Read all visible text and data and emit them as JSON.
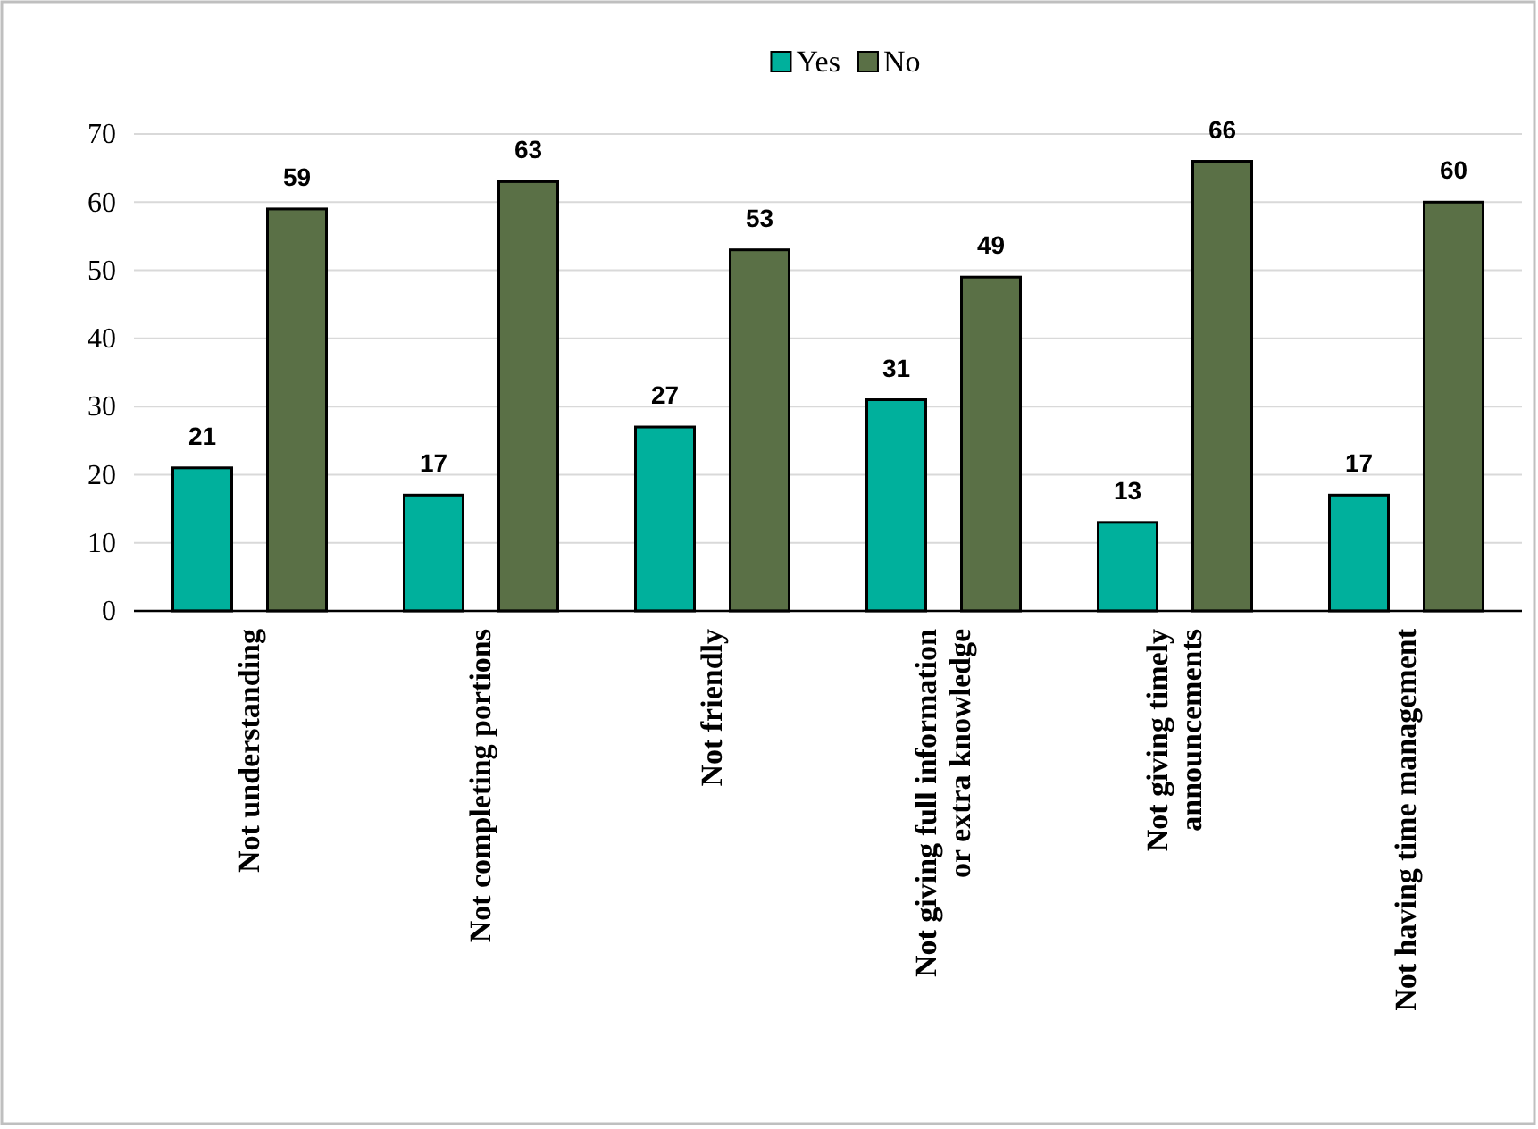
{
  "chart_data": {
    "type": "bar",
    "categories": [
      "Not understanding",
      "Not completing portions",
      "Not friendly",
      "Not giving full information or extra knowledge",
      "Not giving timely announcements",
      "Not having time management"
    ],
    "series": [
      {
        "name": "Yes",
        "color": "#00b09c",
        "values": [
          21,
          17,
          27,
          31,
          13,
          17
        ]
      },
      {
        "name": "No",
        "color": "#5a7046",
        "values": [
          59,
          63,
          53,
          49,
          66,
          60
        ]
      }
    ],
    "ylim": [
      0,
      70
    ],
    "yticks": [
      0,
      10,
      20,
      30,
      40,
      50,
      60,
      70
    ],
    "grid": "y",
    "legend": "top",
    "data_labels": true
  }
}
